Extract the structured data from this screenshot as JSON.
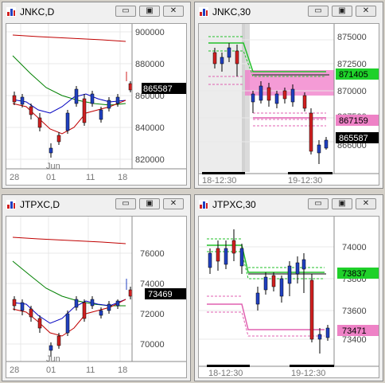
{
  "windows": [
    {
      "id": "jnkc-d",
      "title": "JNKC,D",
      "y_labels": [
        "900000",
        "880000",
        "860000",
        "840000",
        "820000"
      ],
      "x_labels": [
        "28",
        "01",
        "11",
        "18"
      ],
      "x_sub_label": "Jun",
      "price_tag": "865587",
      "price_tag_color": "#000000"
    },
    {
      "id": "jnkc-30",
      "title": "JNKC,30",
      "y_labels": [
        "875000",
        "872500",
        "870000",
        "867500",
        "866000"
      ],
      "x_labels": [
        "18-12:30",
        "19-12:30"
      ],
      "tags": [
        {
          "text": "871405",
          "bg": "#1fd12a",
          "fg": "#000000"
        },
        {
          "text": "867159",
          "bg": "#ee82c6",
          "fg": "#000000"
        },
        {
          "text": "865587",
          "bg": "#000000",
          "fg": "#ffffff"
        }
      ]
    },
    {
      "id": "jtpxc-d",
      "title": "JTPXC,D",
      "y_labels": [
        "76000",
        "74000",
        "72000",
        "70000"
      ],
      "x_labels": [
        "28",
        "01",
        "11",
        "18"
      ],
      "x_sub_label": "Jun",
      "price_tag": "73469",
      "price_tag_color": "#000000"
    },
    {
      "id": "jtpxc-30",
      "title": "JTPXC,30",
      "y_labels": [
        "74000",
        "73800",
        "73600",
        "73400"
      ],
      "x_labels": [
        "18-12:30",
        "19-12:30"
      ],
      "tags": [
        {
          "text": "73837",
          "bg": "#1fd12a",
          "fg": "#000000"
        },
        {
          "text": "73471",
          "bg": "#ee82c6",
          "fg": "#000000"
        }
      ]
    }
  ],
  "buttons": {
    "minimize": "▭",
    "restore": "▣",
    "close": "✕"
  }
}
